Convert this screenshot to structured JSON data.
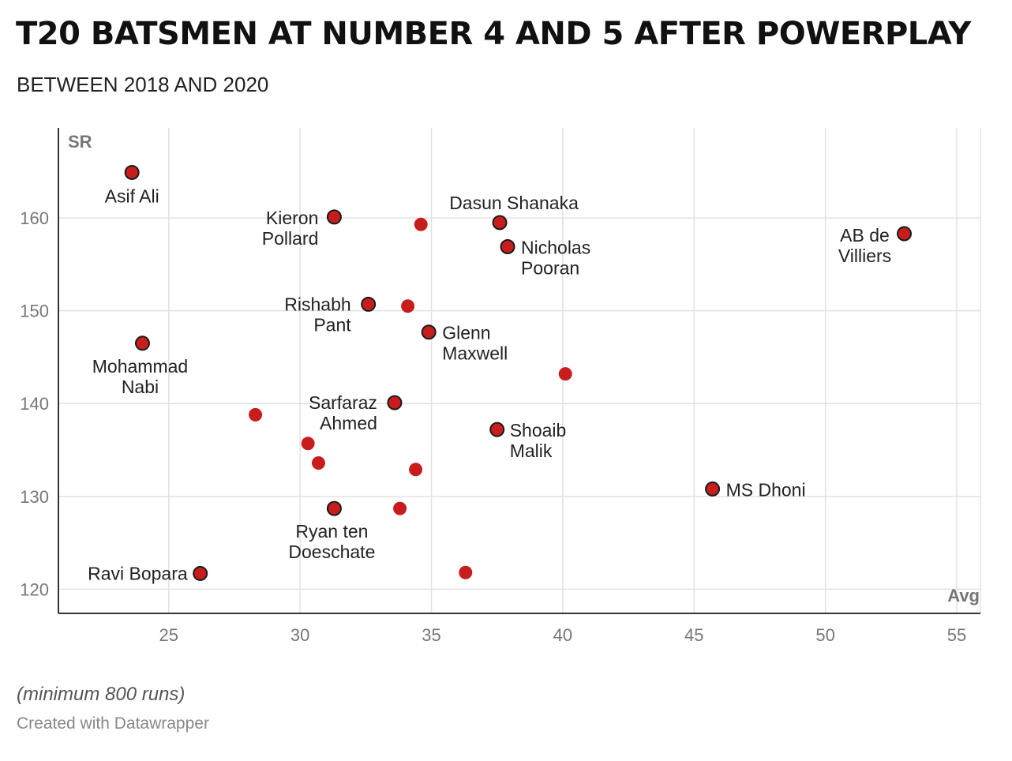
{
  "title": "T20 BATSMEN AT NUMBER 4 AND 5 AFTER POWERPLAY",
  "subtitle": "BETWEEN 2018 AND 2020",
  "notes": "(minimum 800 runs)",
  "credit": "Created with Datawrapper",
  "colors": {
    "point": "#c71e1d",
    "outline": "#1a1a1a",
    "grid": "#e2e2e2",
    "axis": "#333333",
    "tick": "#777777"
  },
  "chart_data": {
    "type": "scatter",
    "title": "T20 BATSMEN AT NUMBER 4 AND 5 AFTER POWERPLAY",
    "subtitle": "BETWEEN 2018 AND 2020",
    "xlabel": "Avg",
    "ylabel": "SR",
    "xlim": [
      20.8,
      55.9
    ],
    "ylim": [
      117.4,
      169.7
    ],
    "xticks": [
      25,
      30,
      35,
      40,
      45,
      50,
      55
    ],
    "yticks": [
      120,
      130,
      140,
      150,
      160
    ],
    "grid": true,
    "points": [
      {
        "x": 23.6,
        "y": 164.9,
        "label": [
          "Asif Ali"
        ]
      },
      {
        "x": 31.3,
        "y": 160.1,
        "label": [
          "Kieron",
          "Pollard"
        ]
      },
      {
        "x": 37.6,
        "y": 159.5,
        "label": [
          "Dasun Shanaka"
        ]
      },
      {
        "x": 37.9,
        "y": 156.9,
        "label": [
          "Nicholas",
          "Pooran"
        ]
      },
      {
        "x": 53.0,
        "y": 158.3,
        "label": [
          "AB de",
          "Villiers"
        ]
      },
      {
        "x": 32.6,
        "y": 150.7,
        "label": [
          "Rishabh",
          "Pant"
        ]
      },
      {
        "x": 34.9,
        "y": 147.7,
        "label": [
          "Glenn",
          "Maxwell"
        ]
      },
      {
        "x": 24.0,
        "y": 146.5,
        "label": [
          "Mohammad",
          "Nabi"
        ]
      },
      {
        "x": 33.6,
        "y": 140.1,
        "label": [
          "Sarfaraz",
          "Ahmed"
        ]
      },
      {
        "x": 37.5,
        "y": 137.2,
        "label": [
          "Shoaib",
          "Malik"
        ]
      },
      {
        "x": 45.7,
        "y": 130.8,
        "label": [
          "MS Dhoni"
        ]
      },
      {
        "x": 31.3,
        "y": 128.7,
        "label": [
          "Ryan ten",
          "Doeschate"
        ]
      },
      {
        "x": 26.2,
        "y": 121.7,
        "label": [
          "Ravi Bopara"
        ]
      },
      {
        "x": 34.6,
        "y": 159.3
      },
      {
        "x": 34.1,
        "y": 150.5
      },
      {
        "x": 40.1,
        "y": 143.2
      },
      {
        "x": 28.3,
        "y": 138.8
      },
      {
        "x": 30.3,
        "y": 135.7
      },
      {
        "x": 30.7,
        "y": 133.6
      },
      {
        "x": 34.4,
        "y": 132.9
      },
      {
        "x": 33.8,
        "y": 128.7
      },
      {
        "x": 36.3,
        "y": 121.8
      }
    ]
  }
}
